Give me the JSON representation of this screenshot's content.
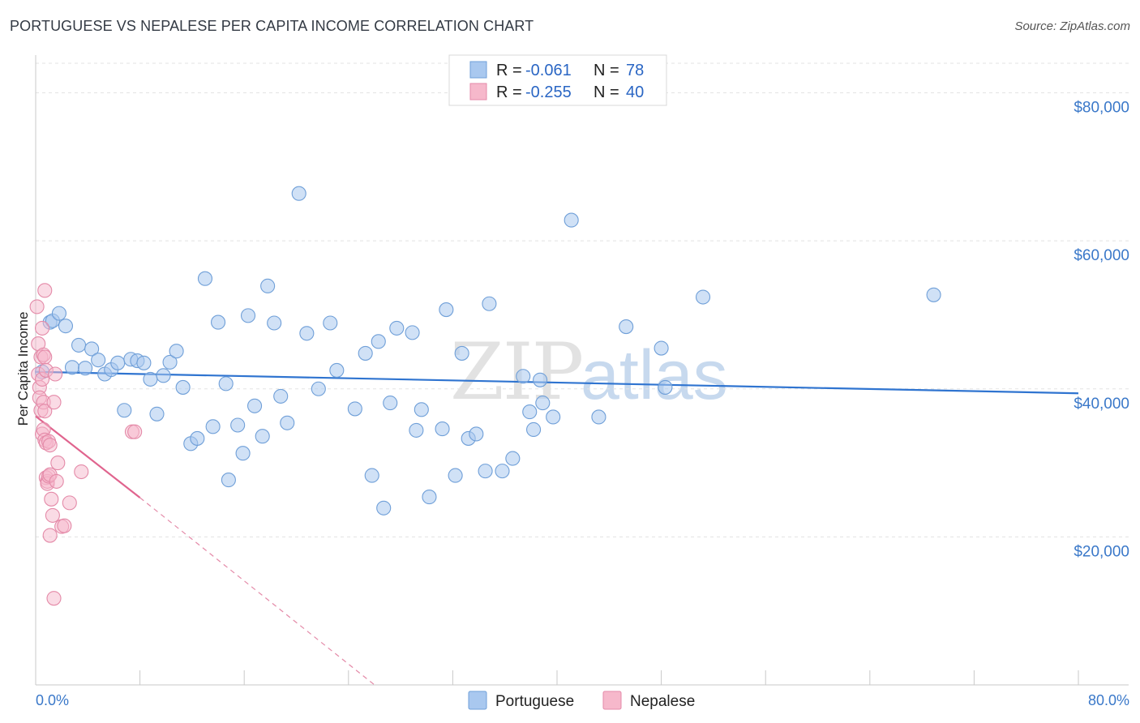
{
  "header": {
    "title": "PORTUGUESE VS NEPALESE PER CAPITA INCOME CORRELATION CHART",
    "source": "Source: ZipAtlas.com"
  },
  "watermark": "ZIPatlas",
  "colors": {
    "portuguese_fill": "#a9c8ef",
    "portuguese_stroke": "#6f9fd8",
    "portuguese_line": "#2f74d0",
    "nepalese_fill": "#f6b8cb",
    "nepalese_stroke": "#e48aa8",
    "nepalese_line": "#e0648e",
    "axis_label": "#3a78c9"
  },
  "stats_legend": {
    "rows": [
      {
        "r_label": "R =",
        "r_value": "-0.061",
        "n_label": "N =",
        "n_value": "78"
      },
      {
        "r_label": "R =",
        "r_value": "-0.255",
        "n_label": "N =",
        "n_value": "40"
      }
    ]
  },
  "chart_data": {
    "type": "scatter",
    "title": "PORTUGUESE VS NEPALESE PER CAPITA INCOME CORRELATION CHART",
    "xlabel": "",
    "ylabel": "Per Capita Income",
    "xlim": [
      0,
      80
    ],
    "ylim": [
      0,
      84000
    ],
    "x_tick_labels": [
      "0.0%",
      "80.0%"
    ],
    "y_ticks": [
      20000,
      40000,
      60000,
      80000
    ],
    "y_tick_labels": [
      "$20,000",
      "$40,000",
      "$60,000",
      "$80,000"
    ],
    "grid": true,
    "legend_position": "bottom-center",
    "series": [
      {
        "name": "Portuguese",
        "r": -0.061,
        "n": 78,
        "trend": {
          "x": [
            0,
            80
          ],
          "y": [
            42300,
            39400
          ]
        },
        "points": [
          {
            "x": 0.5,
            "y": 42300
          },
          {
            "x": 1.1,
            "y": 49000
          },
          {
            "x": 1.3,
            "y": 49200
          },
          {
            "x": 1.8,
            "y": 50200
          },
          {
            "x": 2.3,
            "y": 48500
          },
          {
            "x": 2.8,
            "y": 42900
          },
          {
            "x": 3.3,
            "y": 45900
          },
          {
            "x": 3.8,
            "y": 42800
          },
          {
            "x": 4.3,
            "y": 45400
          },
          {
            "x": 4.8,
            "y": 43900
          },
          {
            "x": 5.3,
            "y": 42000
          },
          {
            "x": 5.8,
            "y": 42600
          },
          {
            "x": 6.3,
            "y": 43500
          },
          {
            "x": 6.8,
            "y": 37100
          },
          {
            "x": 7.3,
            "y": 44000
          },
          {
            "x": 7.8,
            "y": 43800
          },
          {
            "x": 8.3,
            "y": 43500
          },
          {
            "x": 8.8,
            "y": 41300
          },
          {
            "x": 9.3,
            "y": 36600
          },
          {
            "x": 9.8,
            "y": 41800
          },
          {
            "x": 10.3,
            "y": 43600
          },
          {
            "x": 10.8,
            "y": 45100
          },
          {
            "x": 11.3,
            "y": 40200
          },
          {
            "x": 11.9,
            "y": 32600
          },
          {
            "x": 12.4,
            "y": 33300
          },
          {
            "x": 13.0,
            "y": 54900
          },
          {
            "x": 13.6,
            "y": 34900
          },
          {
            "x": 14.0,
            "y": 49000
          },
          {
            "x": 14.6,
            "y": 40700
          },
          {
            "x": 14.8,
            "y": 27700
          },
          {
            "x": 15.5,
            "y": 35100
          },
          {
            "x": 15.9,
            "y": 31300
          },
          {
            "x": 16.3,
            "y": 49900
          },
          {
            "x": 16.8,
            "y": 37700
          },
          {
            "x": 17.4,
            "y": 33600
          },
          {
            "x": 17.8,
            "y": 53900
          },
          {
            "x": 18.3,
            "y": 48900
          },
          {
            "x": 18.8,
            "y": 39000
          },
          {
            "x": 19.3,
            "y": 35400
          },
          {
            "x": 20.2,
            "y": 66400
          },
          {
            "x": 20.8,
            "y": 47500
          },
          {
            "x": 21.7,
            "y": 40000
          },
          {
            "x": 22.6,
            "y": 48900
          },
          {
            "x": 23.1,
            "y": 42500
          },
          {
            "x": 24.5,
            "y": 37300
          },
          {
            "x": 25.3,
            "y": 44800
          },
          {
            "x": 25.8,
            "y": 28300
          },
          {
            "x": 26.3,
            "y": 46400
          },
          {
            "x": 26.7,
            "y": 23900
          },
          {
            "x": 27.2,
            "y": 38100
          },
          {
            "x": 27.7,
            "y": 48200
          },
          {
            "x": 28.9,
            "y": 47600
          },
          {
            "x": 29.2,
            "y": 34400
          },
          {
            "x": 29.6,
            "y": 37200
          },
          {
            "x": 30.2,
            "y": 25400
          },
          {
            "x": 31.2,
            "y": 34600
          },
          {
            "x": 31.5,
            "y": 50700
          },
          {
            "x": 32.2,
            "y": 28300
          },
          {
            "x": 32.7,
            "y": 44800
          },
          {
            "x": 33.2,
            "y": 33300
          },
          {
            "x": 33.8,
            "y": 33900
          },
          {
            "x": 34.5,
            "y": 28900
          },
          {
            "x": 34.8,
            "y": 51500
          },
          {
            "x": 35.8,
            "y": 28900
          },
          {
            "x": 36.6,
            "y": 30600
          },
          {
            "x": 37.4,
            "y": 41700
          },
          {
            "x": 37.9,
            "y": 36900
          },
          {
            "x": 38.2,
            "y": 34500
          },
          {
            "x": 38.7,
            "y": 41200
          },
          {
            "x": 38.9,
            "y": 38100
          },
          {
            "x": 39.7,
            "y": 36200
          },
          {
            "x": 41.1,
            "y": 62800
          },
          {
            "x": 43.2,
            "y": 36200
          },
          {
            "x": 45.3,
            "y": 48400
          },
          {
            "x": 48.0,
            "y": 45500
          },
          {
            "x": 48.3,
            "y": 40200
          },
          {
            "x": 51.2,
            "y": 52400
          },
          {
            "x": 68.9,
            "y": 52700
          }
        ]
      },
      {
        "name": "Nepalese",
        "r": -0.255,
        "n": 40,
        "trend": {
          "x": [
            0,
            8
          ],
          "y": [
            36300,
            25300
          ]
        },
        "trend_extension": {
          "x": [
            8,
            26
          ],
          "y": [
            25300,
            0
          ]
        },
        "points": [
          {
            "x": 0.1,
            "y": 51100
          },
          {
            "x": 0.2,
            "y": 46100
          },
          {
            "x": 0.2,
            "y": 42000
          },
          {
            "x": 0.3,
            "y": 40200
          },
          {
            "x": 0.3,
            "y": 38800
          },
          {
            "x": 0.4,
            "y": 44300
          },
          {
            "x": 0.4,
            "y": 37100
          },
          {
            "x": 0.5,
            "y": 48200
          },
          {
            "x": 0.5,
            "y": 41300
          },
          {
            "x": 0.5,
            "y": 33900
          },
          {
            "x": 0.6,
            "y": 44600
          },
          {
            "x": 0.6,
            "y": 38200
          },
          {
            "x": 0.6,
            "y": 34500
          },
          {
            "x": 0.7,
            "y": 53300
          },
          {
            "x": 0.7,
            "y": 44300
          },
          {
            "x": 0.7,
            "y": 37000
          },
          {
            "x": 0.7,
            "y": 33100
          },
          {
            "x": 0.8,
            "y": 42500
          },
          {
            "x": 0.8,
            "y": 32700
          },
          {
            "x": 0.8,
            "y": 28000
          },
          {
            "x": 0.9,
            "y": 27500
          },
          {
            "x": 0.9,
            "y": 27200
          },
          {
            "x": 1.0,
            "y": 32900
          },
          {
            "x": 1.0,
            "y": 28200
          },
          {
            "x": 1.1,
            "y": 32400
          },
          {
            "x": 1.1,
            "y": 28400
          },
          {
            "x": 1.1,
            "y": 20200
          },
          {
            "x": 1.2,
            "y": 25100
          },
          {
            "x": 1.3,
            "y": 22900
          },
          {
            "x": 1.4,
            "y": 38200
          },
          {
            "x": 1.4,
            "y": 11700
          },
          {
            "x": 1.5,
            "y": 42000
          },
          {
            "x": 1.6,
            "y": 27500
          },
          {
            "x": 1.7,
            "y": 30000
          },
          {
            "x": 2.0,
            "y": 21400
          },
          {
            "x": 2.2,
            "y": 21500
          },
          {
            "x": 2.6,
            "y": 24600
          },
          {
            "x": 3.5,
            "y": 28800
          },
          {
            "x": 7.4,
            "y": 34200
          },
          {
            "x": 7.6,
            "y": 34200
          }
        ]
      }
    ]
  },
  "bottom_legend": {
    "items": [
      "Portuguese",
      "Nepalese"
    ]
  }
}
